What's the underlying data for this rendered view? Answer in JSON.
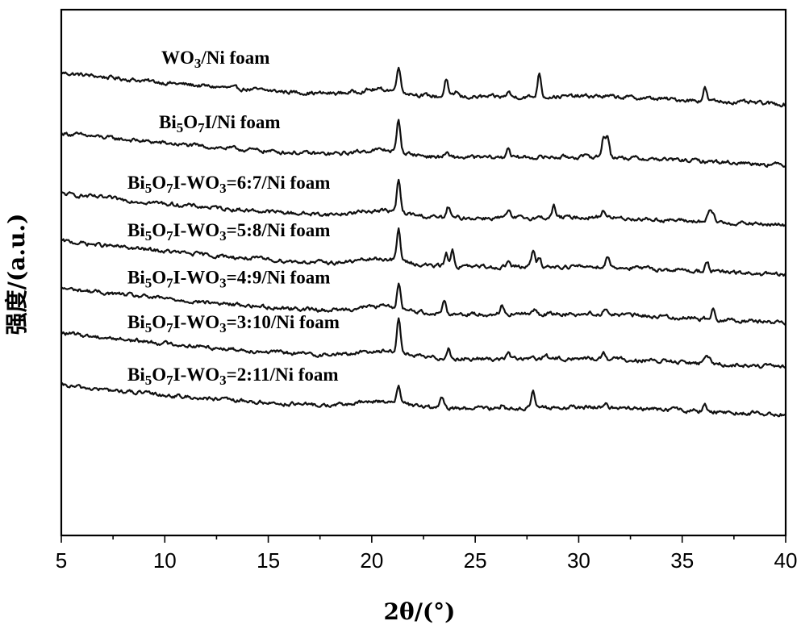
{
  "chart_data": {
    "type": "line",
    "xlabel": "2θ/(°)",
    "ylabel": "强度/(a.u.)",
    "xlim": [
      5,
      40
    ],
    "xticks": [
      5,
      10,
      15,
      20,
      25,
      30,
      35,
      40
    ],
    "yticks_shown": false,
    "grid": false,
    "legend": "inline labels above each trace",
    "series": [
      {
        "name": "WO₃/Ni foam",
        "label_parts": [
          [
            "WO",
            ""
          ],
          [
            "3",
            "sub"
          ],
          [
            "/Ni foam",
            ""
          ]
        ],
        "baseline_start": 0.88,
        "baseline_end": 0.82,
        "peaks": [
          {
            "x": 21.3,
            "h": 0.05
          },
          {
            "x": 23.6,
            "h": 0.035
          },
          {
            "x": 24.1,
            "h": 0.01
          },
          {
            "x": 26.6,
            "h": 0.01
          },
          {
            "x": 28.1,
            "h": 0.045
          },
          {
            "x": 36.1,
            "h": 0.025
          }
        ]
      },
      {
        "name": "Bi₅O₇I/Ni foam",
        "label_parts": [
          [
            "Bi",
            ""
          ],
          [
            "5",
            "sub"
          ],
          [
            "O",
            ""
          ],
          [
            "7",
            "sub"
          ],
          [
            "I/Ni foam",
            ""
          ]
        ],
        "baseline_start": 0.765,
        "baseline_end": 0.705,
        "peaks": [
          {
            "x": 21.3,
            "h": 0.06
          },
          {
            "x": 23.6,
            "h": 0.008
          },
          {
            "x": 26.6,
            "h": 0.02
          },
          {
            "x": 31.2,
            "h": 0.035
          },
          {
            "x": 31.4,
            "h": 0.04
          }
        ]
      },
      {
        "name": "Bi₅O₇I-WO₃=6:7/Ni foam",
        "label_parts": [
          [
            "Bi",
            ""
          ],
          [
            "5",
            "sub"
          ],
          [
            "O",
            ""
          ],
          [
            "7",
            "sub"
          ],
          [
            "I-WO",
            ""
          ],
          [
            "3",
            "sub"
          ],
          [
            "=6:7/Ni foam",
            ""
          ]
        ],
        "baseline_start": 0.65,
        "baseline_end": 0.59,
        "peaks": [
          {
            "x": 21.3,
            "h": 0.06
          },
          {
            "x": 23.7,
            "h": 0.02
          },
          {
            "x": 26.6,
            "h": 0.012
          },
          {
            "x": 28.8,
            "h": 0.022
          },
          {
            "x": 31.2,
            "h": 0.015
          },
          {
            "x": 36.3,
            "h": 0.018
          },
          {
            "x": 36.5,
            "h": 0.015
          }
        ]
      },
      {
        "name": "Bi₅O₇I-WO₃=5:8/Ni foam",
        "label_parts": [
          [
            "Bi",
            ""
          ],
          [
            "5",
            "sub"
          ],
          [
            "O",
            ""
          ],
          [
            "7",
            "sub"
          ],
          [
            "I-WO",
            ""
          ],
          [
            "3",
            "sub"
          ],
          [
            "=5:8/Ni foam",
            ""
          ]
        ],
        "baseline_start": 0.56,
        "baseline_end": 0.495,
        "peaks": [
          {
            "x": 21.3,
            "h": 0.06
          },
          {
            "x": 23.6,
            "h": 0.025
          },
          {
            "x": 23.9,
            "h": 0.03
          },
          {
            "x": 26.6,
            "h": 0.012
          },
          {
            "x": 27.8,
            "h": 0.03
          },
          {
            "x": 28.1,
            "h": 0.015
          },
          {
            "x": 31.4,
            "h": 0.02
          },
          {
            "x": 36.2,
            "h": 0.02
          }
        ]
      },
      {
        "name": "Bi₅O₇I-WO₃=4:9/Ni foam",
        "label_parts": [
          [
            "Bi",
            ""
          ],
          [
            "5",
            "sub"
          ],
          [
            "O",
            ""
          ],
          [
            "7",
            "sub"
          ],
          [
            "I-WO",
            ""
          ],
          [
            "3",
            "sub"
          ],
          [
            "=4:9/Ni foam",
            ""
          ]
        ],
        "baseline_start": 0.47,
        "baseline_end": 0.405,
        "peaks": [
          {
            "x": 21.3,
            "h": 0.045
          },
          {
            "x": 23.5,
            "h": 0.025
          },
          {
            "x": 26.3,
            "h": 0.018
          },
          {
            "x": 27.9,
            "h": 0.01
          },
          {
            "x": 31.3,
            "h": 0.012
          },
          {
            "x": 36.5,
            "h": 0.022
          }
        ]
      },
      {
        "name": "Bi₅O₇I-WO₃=3:10/Ni foam",
        "label_parts": [
          [
            "Bi",
            ""
          ],
          [
            "5",
            "sub"
          ],
          [
            "O",
            ""
          ],
          [
            "7",
            "sub"
          ],
          [
            "I-WO",
            ""
          ],
          [
            "3",
            "sub"
          ],
          [
            "=3:10/Ni foam",
            ""
          ]
        ],
        "baseline_start": 0.385,
        "baseline_end": 0.32,
        "peaks": [
          {
            "x": 21.3,
            "h": 0.07
          },
          {
            "x": 23.7,
            "h": 0.02
          },
          {
            "x": 26.6,
            "h": 0.012
          },
          {
            "x": 28.4,
            "h": 0.008
          },
          {
            "x": 31.2,
            "h": 0.01
          },
          {
            "x": 36.1,
            "h": 0.012
          },
          {
            "x": 36.3,
            "h": 0.012
          }
        ]
      },
      {
        "name": "Bi₅O₇I-WO₃=2:11/Ni foam",
        "label_parts": [
          [
            "Bi",
            ""
          ],
          [
            "5",
            "sub"
          ],
          [
            "O",
            ""
          ],
          [
            "7",
            "sub"
          ],
          [
            "I-WO",
            ""
          ],
          [
            "3",
            "sub"
          ],
          [
            "=2:11/Ni foam",
            ""
          ]
        ],
        "baseline_start": 0.285,
        "baseline_end": 0.23,
        "peaks": [
          {
            "x": 21.3,
            "h": 0.035
          },
          {
            "x": 23.4,
            "h": 0.02
          },
          {
            "x": 26.3,
            "h": 0.008
          },
          {
            "x": 27.8,
            "h": 0.03
          },
          {
            "x": 31.3,
            "h": 0.008
          },
          {
            "x": 36.1,
            "h": 0.012
          }
        ]
      }
    ]
  }
}
